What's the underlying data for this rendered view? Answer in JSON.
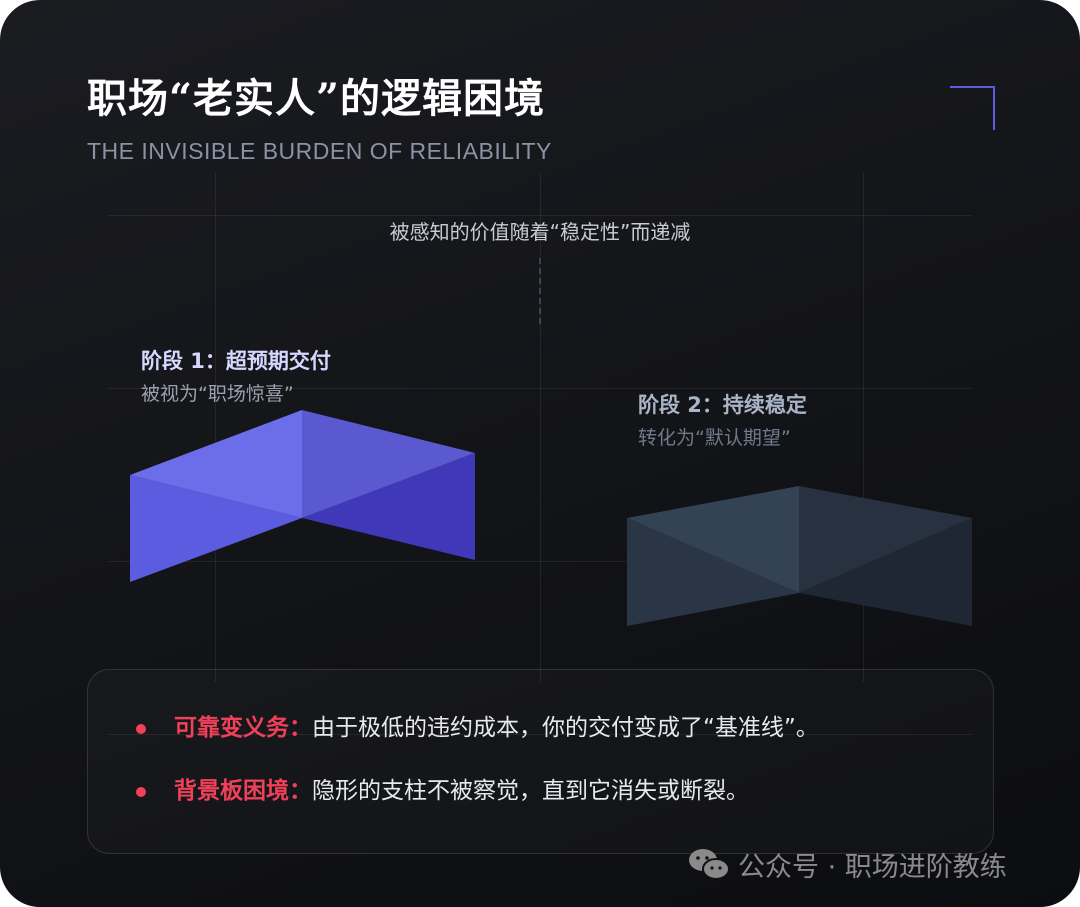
{
  "header": {
    "title": "职场“老实人”的逻辑困境",
    "subtitle": "THE INVISIBLE BURDEN OF RELIABILITY"
  },
  "diagram": {
    "caption": "被感知的价值随着“稳定性”而递减",
    "stages": [
      {
        "title": "阶段 1：超预期交付",
        "subtitle": "被视为“职场惊喜”",
        "colors": [
          "#6b6ee8",
          "#5b5ce0",
          "#5a59d0",
          "#3f38b8"
        ],
        "title_color": "#d6d8ff"
      },
      {
        "title": "阶段 2：持续稳定",
        "subtitle": "转化为“默认期望”",
        "colors": [
          "#334254",
          "#2a3546",
          "#27313f",
          "#1e2733"
        ],
        "title_color": "#a9b4c6"
      }
    ],
    "accent": "#5b5ce0"
  },
  "points": [
    {
      "label": "可靠变义务：",
      "text": "由于极低的违约成本，你的交付变成了“基准线”。"
    },
    {
      "label": "背景板困境：",
      "text": "隐形的支柱不被察觉，直到它消失或断裂。"
    }
  ],
  "highlight_color": "#f0405a",
  "watermark": {
    "icon": "wechat-icon",
    "text": "公众号 · 职场进阶教练"
  }
}
